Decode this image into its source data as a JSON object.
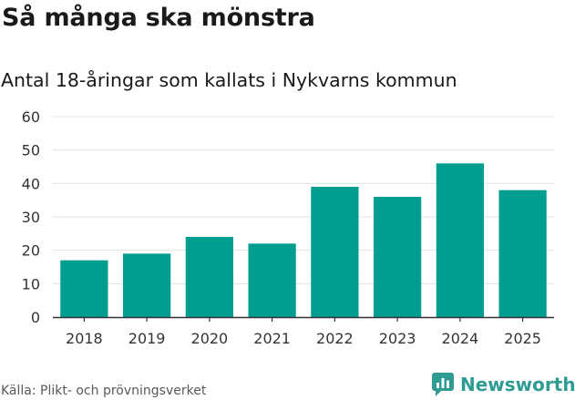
{
  "header": {
    "title": "Så många ska mönstra",
    "subtitle": "Antal 18-åringar som kallats i Nykvarns kommun"
  },
  "footer": {
    "source": "Källa: Plikt- och prövningsverket",
    "brand": "Newsworthy"
  },
  "colors": {
    "bar": "#009e91",
    "grid": "#e3e3e3",
    "axis": "#333333",
    "brand": "#2e9c93"
  },
  "chart_data": {
    "type": "bar",
    "title": "Så många ska mönstra",
    "subtitle": "Antal 18-åringar som kallats i Nykvarns kommun",
    "categories": [
      "2018",
      "2019",
      "2020",
      "2021",
      "2022",
      "2023",
      "2024",
      "2025"
    ],
    "values": [
      17,
      19,
      24,
      22,
      39,
      36,
      46,
      38
    ],
    "ylim": [
      0,
      60
    ],
    "yticks": [
      0,
      10,
      20,
      30,
      40,
      50,
      60
    ],
    "xlabel": "",
    "ylabel": "",
    "grid": true
  }
}
